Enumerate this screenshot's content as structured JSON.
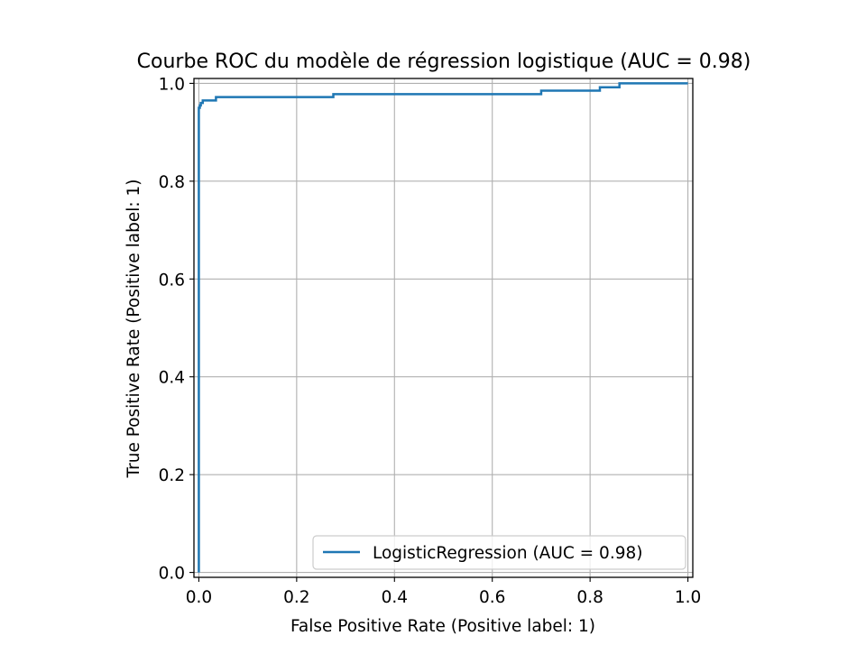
{
  "chart_data": {
    "type": "line",
    "title": "Courbe ROC du modèle de régression logistique (AUC = 0.98)",
    "xlabel": "False Positive Rate (Positive label: 1)",
    "ylabel": "True Positive Rate (Positive label: 1)",
    "xlim": [
      -0.01,
      1.01
    ],
    "ylim": [
      -0.01,
      1.01
    ],
    "xticks": [
      0.0,
      0.2,
      0.4,
      0.6,
      0.8,
      1.0
    ],
    "yticks": [
      0.0,
      0.2,
      0.4,
      0.6,
      0.8,
      1.0
    ],
    "xtick_labels": [
      "0.0",
      "0.2",
      "0.4",
      "0.6",
      "0.8",
      "1.0"
    ],
    "ytick_labels": [
      "0.0",
      "0.2",
      "0.4",
      "0.6",
      "0.8",
      "1.0"
    ],
    "grid": true,
    "legend_position": "lower-right",
    "series": [
      {
        "name": "LogisticRegression (AUC = 0.98)",
        "color": "#1f77b4",
        "drawstyle": "steps-post",
        "x": [
          0.0,
          0.0,
          0.0,
          0.002,
          0.002,
          0.004,
          0.004,
          0.008,
          0.008,
          0.012,
          0.012,
          0.035,
          0.035,
          0.275,
          0.275,
          0.7,
          0.7,
          0.82,
          0.82,
          0.86,
          0.86,
          1.0
        ],
        "y": [
          0.0,
          0.7,
          0.95,
          0.95,
          0.955,
          0.955,
          0.96,
          0.96,
          0.965,
          0.965,
          0.965,
          0.965,
          0.972,
          0.972,
          0.978,
          0.978,
          0.985,
          0.985,
          0.992,
          0.992,
          1.0,
          1.0
        ]
      }
    ]
  }
}
